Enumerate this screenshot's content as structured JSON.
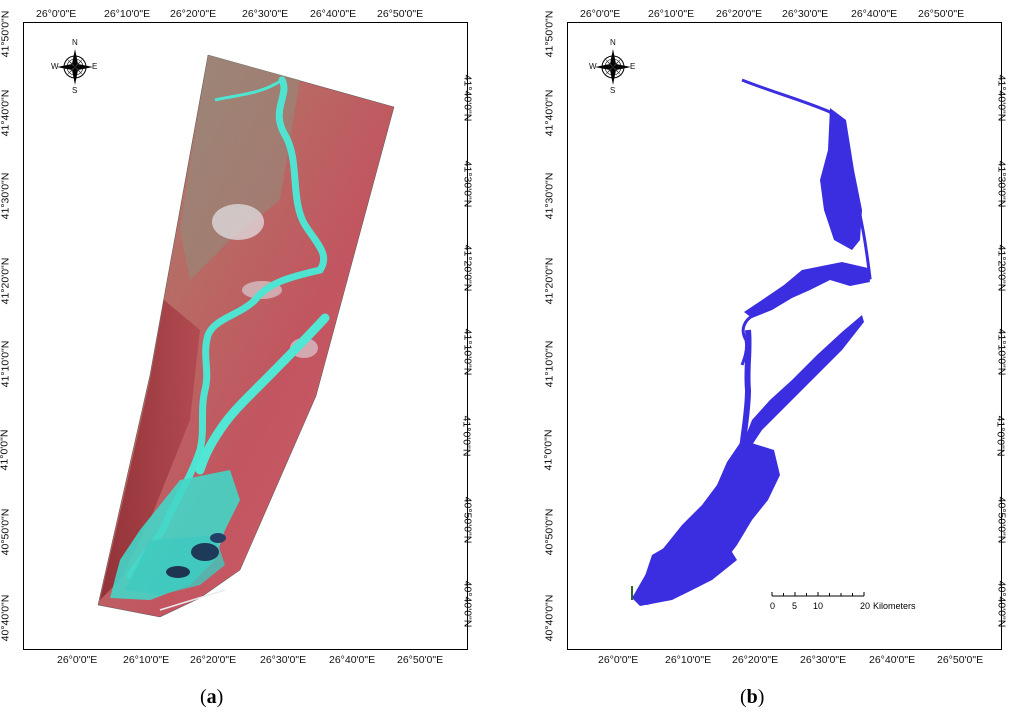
{
  "panels": [
    {
      "id": "a",
      "caption_letter": "a",
      "top_labels": [
        "26°0'0\"E",
        "26°10'0\"E",
        "26°20'0\"E",
        "26°30'0\"E",
        "26°40'0\"E",
        "26°50'0\"E"
      ],
      "bottom_labels": [
        "26°0'0\"E",
        "26°10'0\"E",
        "26°20'0\"E",
        "26°30'0\"E",
        "26°40'0\"E",
        "26°50'0\"E"
      ],
      "left_labels": [
        "41°50'0\"N",
        "41°40'0\"N",
        "41°30'0\"N",
        "41°20'0\"N",
        "41°10'0\"N",
        "41°0'0\"N",
        "40°50'0\"N",
        "40°40'0\"N"
      ],
      "right_labels": [
        "41°40'0\"N",
        "41°30'0\"N",
        "41°20'0\"N",
        "41°10'0\"N",
        "41°0'0\"N",
        "40°50'0\"N",
        "40°40'0\"N"
      ],
      "compass": {
        "n": "N",
        "s": "S",
        "e": "E",
        "w": "W"
      }
    },
    {
      "id": "b",
      "caption_letter": "b",
      "top_labels": [
        "26°0'0\"E",
        "26°10'0\"E",
        "26°20'0\"E",
        "26°30'0\"E",
        "26°40'0\"E",
        "26°50'0\"E"
      ],
      "bottom_labels": [
        "26°0'0\"E",
        "26°10'0\"E",
        "26°20'0\"E",
        "26°30'0\"E",
        "26°40'0\"E",
        "26°50'0\"E"
      ],
      "left_labels": [
        "41°50'0\"N",
        "41°40'0\"N",
        "41°30'0\"N",
        "41°20'0\"N",
        "41°10'0\"N",
        "41°0'0\"N",
        "40°50'0\"N",
        "40°40'0\"N"
      ],
      "right_labels": [
        "41°40'0\"N",
        "41°30'0\"N",
        "41°20'0\"N",
        "41°10'0\"N",
        "41°0'0\"N",
        "40°50'0\"N",
        "40°40'0\"N"
      ],
      "compass": {
        "n": "N",
        "s": "S",
        "e": "E",
        "w": "W"
      },
      "scalebar": {
        "ticks": [
          "0",
          "5",
          "10",
          "20"
        ],
        "unit": "Kilometers"
      }
    }
  ],
  "colors": {
    "flood_blue": "#3b2ee0",
    "river_cyan": "#4fe0d0",
    "land_red": "#c8505a",
    "land_tan": "#9a8a72"
  }
}
